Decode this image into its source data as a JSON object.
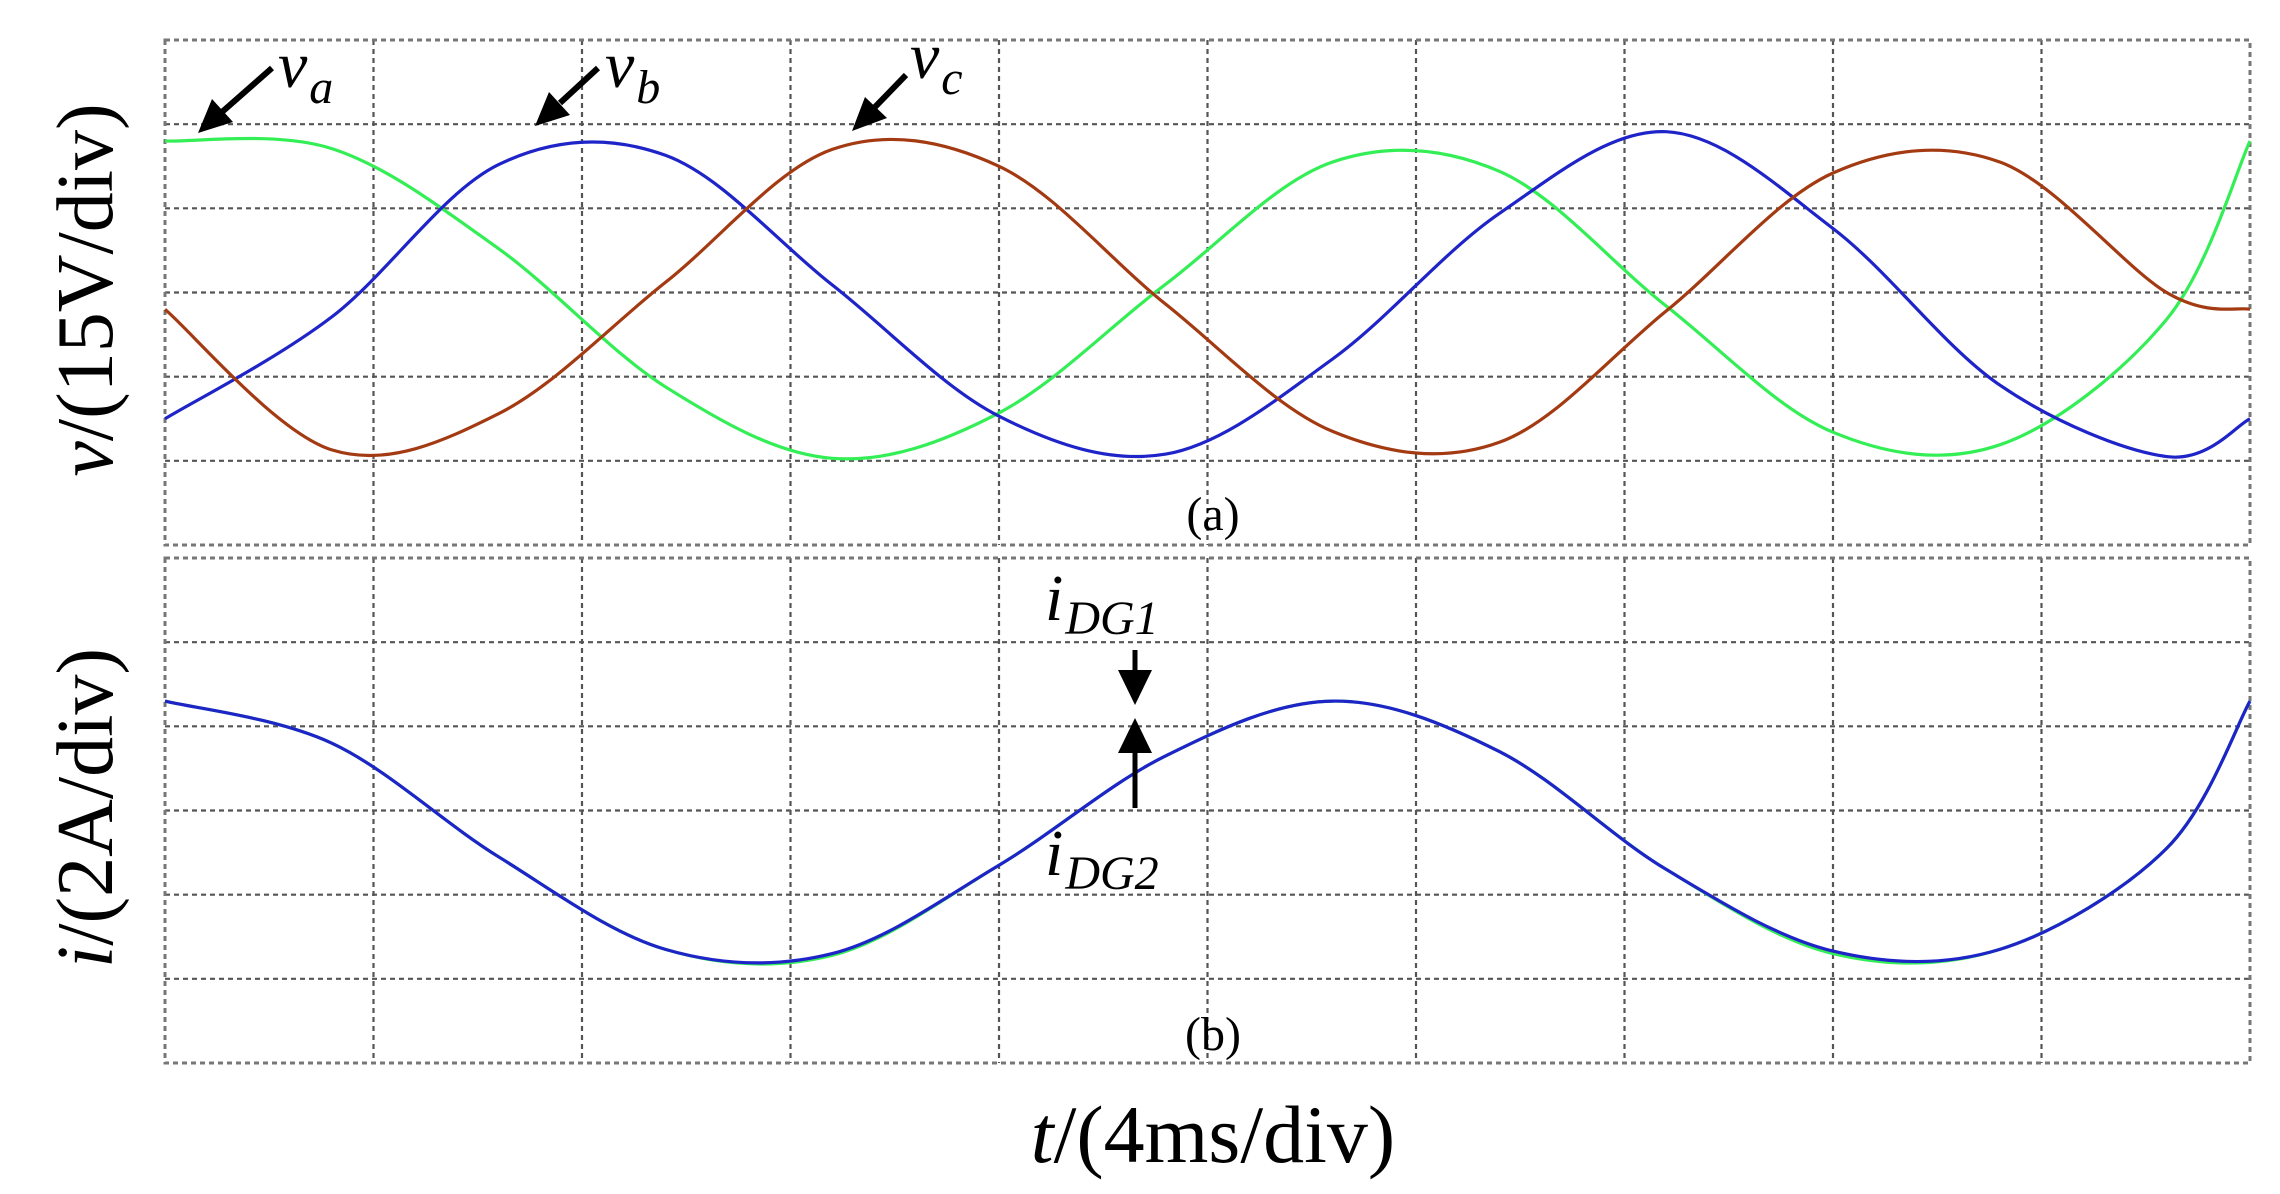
{
  "colors": {
    "va": "#33ee55",
    "vb": "#1f24c8",
    "vc": "#a33a12",
    "idg1": "#33ee55",
    "idg2": "#1f24c8",
    "grid": "#555555",
    "frame": "#777777"
  },
  "chart_data": [
    {
      "type": "line",
      "panel_label": "(a)",
      "ylabel": {
        "var": "v",
        "unit": "/(15V/div)"
      },
      "x_divs": 10,
      "y_divs": 6,
      "grid": true,
      "series": [
        {
          "name": {
            "base": "v",
            "sub": "a"
          },
          "x": [
            0.0,
            0.8,
            1.6,
            2.4,
            3.2,
            4.0,
            4.8,
            5.6,
            6.4,
            7.2,
            8.0,
            8.8,
            9.6,
            10.0
          ],
          "y": [
            4.8,
            4.71,
            3.52,
            1.88,
            1.03,
            1.57,
            3.1,
            4.55,
            4.44,
            2.84,
            1.34,
            1.19,
            2.68,
            4.8
          ]
        },
        {
          "name": {
            "base": "v",
            "sub": "b"
          },
          "x": [
            0.0,
            0.8,
            1.6,
            2.4,
            3.2,
            4.0,
            4.8,
            5.6,
            6.4,
            7.2,
            8.0,
            8.8,
            9.6,
            10.0
          ],
          "y": [
            1.5,
            2.71,
            4.52,
            4.63,
            3.09,
            1.53,
            1.08,
            2.21,
            3.94,
            4.91,
            3.76,
            1.9,
            1.05,
            1.5
          ]
        },
        {
          "name": {
            "base": "v",
            "sub": "c"
          },
          "x": [
            0.0,
            0.8,
            1.6,
            2.4,
            3.2,
            4.0,
            4.8,
            5.6,
            6.4,
            7.2,
            8.0,
            8.8,
            9.6,
            10.0
          ],
          "y": [
            2.8,
            1.13,
            1.56,
            3.12,
            4.7,
            4.5,
            2.86,
            1.35,
            1.22,
            2.78,
            4.42,
            4.55,
            3.0,
            2.8
          ]
        }
      ],
      "annotations": [
        {
          "base": "v",
          "sub": "a"
        },
        {
          "base": "v",
          "sub": "b"
        },
        {
          "base": "v",
          "sub": "c"
        }
      ]
    },
    {
      "type": "line",
      "panel_label": "(b)",
      "ylabel": {
        "var": "i",
        "unit": "/(2A/div)"
      },
      "xlabel": {
        "var": "t",
        "unit": "/(4ms/div)"
      },
      "x_divs": 10,
      "y_divs": 6,
      "grid": true,
      "series": [
        {
          "name": {
            "base": "i",
            "sub": "DG1"
          },
          "x": [
            0.0,
            0.8,
            1.6,
            2.4,
            3.2,
            4.0,
            4.8,
            5.6,
            6.4,
            7.2,
            8.0,
            8.8,
            9.6,
            10.0
          ],
          "y": [
            4.3,
            3.8,
            2.45,
            1.35,
            1.28,
            2.35,
            3.65,
            4.3,
            3.7,
            2.3,
            1.3,
            1.35,
            2.55,
            4.3
          ]
        },
        {
          "name": {
            "base": "i",
            "sub": "DG2"
          },
          "x": [
            0.0,
            0.8,
            1.6,
            2.4,
            3.2,
            4.0,
            4.8,
            5.6,
            6.4,
            7.2,
            8.0,
            8.8,
            9.6,
            10.0
          ],
          "y": [
            4.3,
            3.8,
            2.45,
            1.35,
            1.3,
            2.35,
            3.65,
            4.3,
            3.7,
            2.3,
            1.33,
            1.35,
            2.55,
            4.3
          ]
        }
      ],
      "annotations": [
        {
          "base": "i",
          "sub": "DG1"
        },
        {
          "base": "i",
          "sub": "DG2"
        }
      ]
    }
  ]
}
